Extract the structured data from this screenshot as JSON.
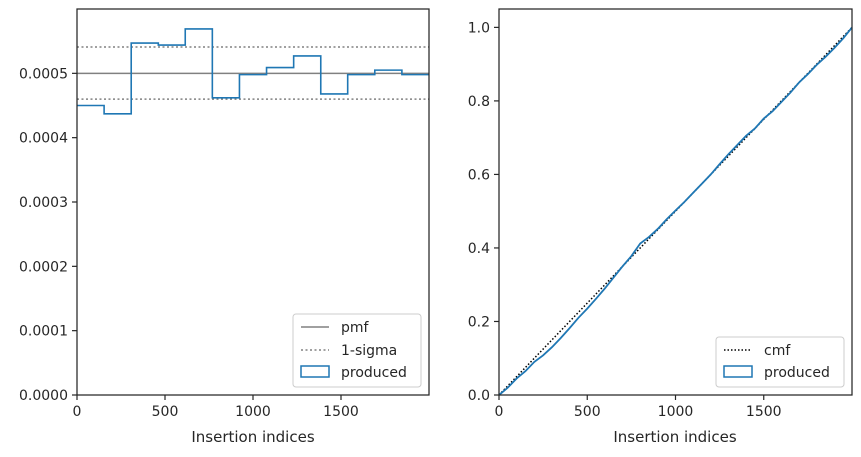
{
  "chart_data": [
    {
      "type": "step",
      "xlabel": "Insertion indices",
      "ylabel": "",
      "xlim": [
        0,
        2000
      ],
      "ylim": [
        0,
        0.0006
      ],
      "xticks": [
        0,
        500,
        1000,
        1500
      ],
      "xtick_labels": [
        "0",
        "500",
        "1000",
        "1500"
      ],
      "yticks": [
        0,
        0.0001,
        0.0002,
        0.0003,
        0.0004,
        0.0005
      ],
      "ytick_labels": [
        "0.0000",
        "0.0001",
        "0.0002",
        "0.0003",
        "0.0004",
        "0.0005"
      ],
      "pmf": 0.0005,
      "sigma_lower": 0.00046,
      "sigma_upper": 0.000541,
      "bin_edges": [
        0,
        154,
        308,
        462,
        615,
        769,
        923,
        1077,
        1231,
        1385,
        1538,
        1692,
        1846,
        2000
      ],
      "values": [
        0.00045,
        0.000437,
        0.000547,
        0.000544,
        0.000569,
        0.000462,
        0.000498,
        0.000509,
        0.000527,
        0.000468,
        0.000498,
        0.000505,
        0.000498
      ],
      "legend_position": "lower-right",
      "legend": [
        "pmf",
        "1-sigma",
        "produced"
      ]
    },
    {
      "type": "line",
      "xlabel": "Insertion indices",
      "ylabel": "",
      "xlim": [
        0,
        2000
      ],
      "ylim": [
        0,
        1.05
      ],
      "xticks": [
        0,
        500,
        1000,
        1500
      ],
      "xtick_labels": [
        "0",
        "500",
        "1000",
        "1500"
      ],
      "yticks": [
        0,
        0.2,
        0.4,
        0.6,
        0.8,
        1.0
      ],
      "ytick_labels": [
        "0.0",
        "0.2",
        "0.4",
        "0.6",
        "0.8",
        "1.0"
      ],
      "cmf": {
        "x": [
          0,
          2000
        ],
        "y": [
          0,
          1
        ]
      },
      "produced": {
        "x": [
          0,
          50,
          100,
          150,
          200,
          250,
          300,
          350,
          400,
          450,
          500,
          550,
          600,
          650,
          700,
          750,
          800,
          850,
          900,
          950,
          1000,
          1050,
          1100,
          1150,
          1200,
          1250,
          1300,
          1350,
          1400,
          1450,
          1500,
          1550,
          1600,
          1650,
          1700,
          1750,
          1800,
          1850,
          1900,
          1950,
          2000
        ],
        "y": [
          0,
          0.02,
          0.045,
          0.065,
          0.09,
          0.108,
          0.13,
          0.155,
          0.182,
          0.21,
          0.235,
          0.262,
          0.29,
          0.32,
          0.35,
          0.378,
          0.412,
          0.43,
          0.452,
          0.478,
          0.502,
          0.525,
          0.55,
          0.575,
          0.6,
          0.628,
          0.655,
          0.68,
          0.705,
          0.725,
          0.752,
          0.772,
          0.797,
          0.822,
          0.85,
          0.873,
          0.898,
          0.92,
          0.944,
          0.97,
          1.0
        ]
      },
      "legend_position": "lower-right",
      "legend": [
        "cmf",
        "produced"
      ]
    }
  ],
  "colors": {
    "produced": "#1f77b4",
    "pmf": "#808080",
    "sigma": "#808080",
    "cmf": "#000000",
    "axes": "#262626"
  }
}
